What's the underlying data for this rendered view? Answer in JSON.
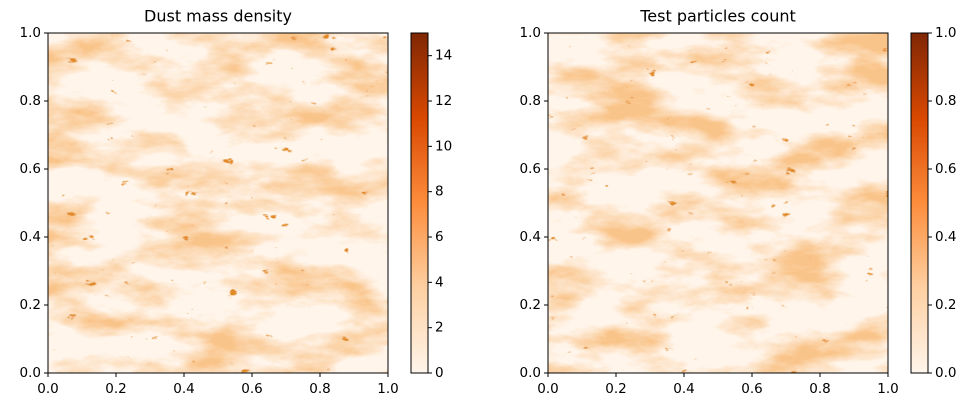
{
  "chart_data": [
    {
      "type": "heatmap",
      "title": "Dust mass density",
      "xlim": [
        0,
        1
      ],
      "ylim": [
        0,
        1
      ],
      "xticks": [
        {
          "value": 0,
          "label": "0.0"
        },
        0.2,
        0.4,
        0.6,
        0.8,
        {
          "value": 1,
          "label": "1.0"
        }
      ],
      "yticks": [
        {
          "value": 0,
          "label": "0.0"
        },
        0.2,
        0.4,
        0.6,
        0.8,
        {
          "value": 1,
          "label": "1.0"
        }
      ],
      "clim": [
        0,
        15
      ],
      "cticks": [
        0,
        2,
        4,
        6,
        8,
        10,
        12,
        14
      ],
      "colors": [
        "#fff5eb",
        "#fdd0a2",
        "#fd8d3c",
        "#d94801",
        "#7f2704"
      ]
    },
    {
      "type": "heatmap",
      "title": "Test particles count",
      "xlim": [
        0,
        1
      ],
      "ylim": [
        0,
        1
      ],
      "xticks": [
        {
          "value": 0,
          "label": "0.0"
        },
        0.2,
        0.4,
        0.6,
        0.8,
        {
          "value": 1,
          "label": "1.0"
        }
      ],
      "yticks": [
        {
          "value": 0,
          "label": "0.0"
        },
        0.2,
        0.4,
        0.6,
        0.8,
        {
          "value": 1,
          "label": "1.0"
        }
      ],
      "clim": [
        0,
        1
      ],
      "cticks": [
        {
          "value": 0,
          "label": "0.0"
        },
        0.2,
        0.4,
        0.6,
        0.8,
        {
          "value": 1,
          "label": "1.0"
        }
      ],
      "colors": [
        "#fff5eb",
        "#fdd0a2",
        "#fd8d3c",
        "#d94801",
        "#7f2704"
      ]
    }
  ]
}
